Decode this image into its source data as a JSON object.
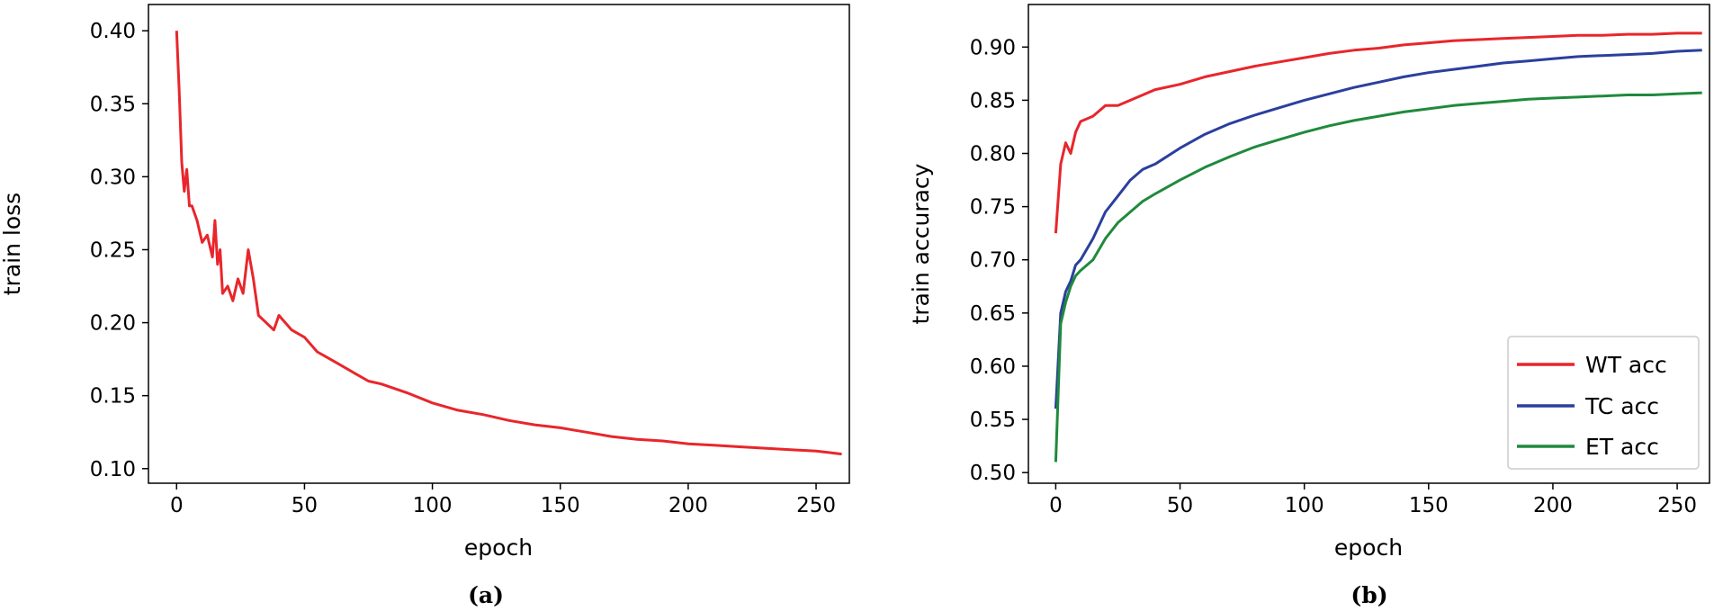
{
  "chart_data": [
    {
      "type": "line",
      "panel": "(a)",
      "xlabel": "epoch",
      "ylabel": "train loss",
      "xlim": [
        -11,
        263
      ],
      "ylim": [
        0.09,
        0.418
      ],
      "xticks": [
        0,
        50,
        100,
        150,
        200,
        250
      ],
      "yticks": [
        0.1,
        0.15,
        0.2,
        0.25,
        0.3,
        0.35,
        0.4
      ],
      "grid": false,
      "legend": null,
      "series": [
        {
          "color": "#e8262b",
          "x": [
            0,
            1,
            2,
            3,
            4,
            5,
            6,
            8,
            10,
            12,
            14,
            15,
            16,
            17,
            18,
            20,
            22,
            24,
            26,
            28,
            30,
            32,
            35,
            38,
            40,
            45,
            50,
            55,
            60,
            65,
            70,
            75,
            80,
            90,
            100,
            110,
            120,
            130,
            140,
            150,
            160,
            170,
            180,
            190,
            200,
            210,
            220,
            230,
            240,
            250,
            255,
            260
          ],
          "y": [
            0.4,
            0.36,
            0.31,
            0.29,
            0.305,
            0.28,
            0.28,
            0.27,
            0.255,
            0.26,
            0.245,
            0.27,
            0.24,
            0.25,
            0.22,
            0.225,
            0.215,
            0.23,
            0.22,
            0.25,
            0.23,
            0.205,
            0.2,
            0.195,
            0.205,
            0.195,
            0.19,
            0.18,
            0.175,
            0.17,
            0.165,
            0.16,
            0.158,
            0.152,
            0.145,
            0.14,
            0.137,
            0.133,
            0.13,
            0.128,
            0.125,
            0.122,
            0.12,
            0.119,
            0.117,
            0.116,
            0.115,
            0.114,
            0.113,
            0.112,
            0.111,
            0.11
          ]
        }
      ]
    },
    {
      "type": "line",
      "panel": "(b)",
      "xlabel": "epoch",
      "ylabel": "train accuracy",
      "xlim": [
        -11,
        263
      ],
      "ylim": [
        0.49,
        0.94
      ],
      "xticks": [
        0,
        50,
        100,
        150,
        200,
        250
      ],
      "yticks": [
        0.5,
        0.55,
        0.6,
        0.65,
        0.7,
        0.75,
        0.8,
        0.85,
        0.9
      ],
      "grid": false,
      "legend": "lower-right",
      "series": [
        {
          "name": "WT acc",
          "color": "#e8262b",
          "x": [
            0,
            2,
            4,
            6,
            8,
            10,
            15,
            20,
            25,
            30,
            35,
            40,
            50,
            60,
            70,
            80,
            90,
            100,
            110,
            120,
            130,
            140,
            150,
            160,
            170,
            180,
            190,
            200,
            210,
            220,
            230,
            240,
            250,
            260
          ],
          "y": [
            0.725,
            0.79,
            0.81,
            0.8,
            0.82,
            0.83,
            0.835,
            0.845,
            0.845,
            0.85,
            0.855,
            0.86,
            0.865,
            0.872,
            0.877,
            0.882,
            0.886,
            0.89,
            0.894,
            0.897,
            0.899,
            0.902,
            0.904,
            0.906,
            0.907,
            0.908,
            0.909,
            0.91,
            0.911,
            0.911,
            0.912,
            0.912,
            0.913,
            0.913
          ]
        },
        {
          "name": "TC acc",
          "color": "#2b3f9e",
          "x": [
            0,
            2,
            4,
            6,
            8,
            10,
            15,
            20,
            25,
            30,
            35,
            40,
            50,
            60,
            70,
            80,
            90,
            100,
            110,
            120,
            130,
            140,
            150,
            160,
            170,
            180,
            190,
            200,
            210,
            220,
            230,
            240,
            250,
            260
          ],
          "y": [
            0.56,
            0.65,
            0.67,
            0.68,
            0.695,
            0.7,
            0.72,
            0.745,
            0.76,
            0.775,
            0.785,
            0.79,
            0.805,
            0.818,
            0.828,
            0.836,
            0.843,
            0.85,
            0.856,
            0.862,
            0.867,
            0.872,
            0.876,
            0.879,
            0.882,
            0.885,
            0.887,
            0.889,
            0.891,
            0.892,
            0.893,
            0.894,
            0.896,
            0.897
          ]
        },
        {
          "name": "ET acc",
          "color": "#1f8a3c",
          "x": [
            0,
            2,
            4,
            6,
            8,
            10,
            15,
            20,
            25,
            30,
            35,
            40,
            50,
            60,
            70,
            80,
            90,
            100,
            110,
            120,
            130,
            140,
            150,
            160,
            170,
            180,
            190,
            200,
            210,
            220,
            230,
            240,
            250,
            260
          ],
          "y": [
            0.51,
            0.64,
            0.66,
            0.675,
            0.685,
            0.69,
            0.7,
            0.72,
            0.735,
            0.745,
            0.755,
            0.762,
            0.775,
            0.787,
            0.797,
            0.806,
            0.813,
            0.82,
            0.826,
            0.831,
            0.835,
            0.839,
            0.842,
            0.845,
            0.847,
            0.849,
            0.851,
            0.852,
            0.853,
            0.854,
            0.855,
            0.855,
            0.856,
            0.857
          ]
        }
      ]
    }
  ]
}
